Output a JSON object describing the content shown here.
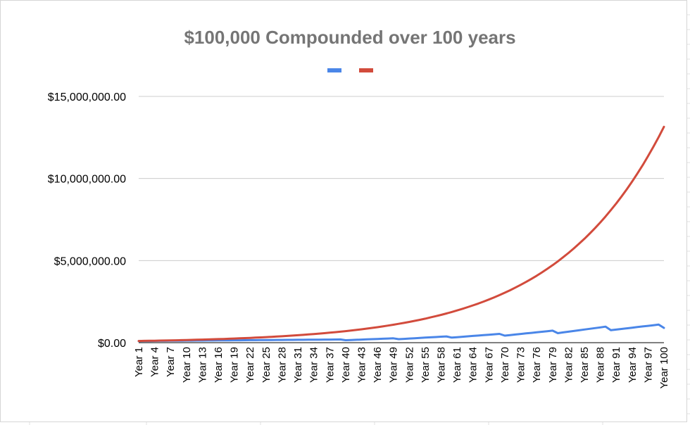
{
  "colors": {
    "series_0": "#4a86e8",
    "series_1": "#d24b3c",
    "grid": "#cccccc",
    "axis": "#000000",
    "title": "#757575"
  },
  "chart_data": {
    "type": "line",
    "title": "$100,000 Compounded over 100 years",
    "xlabel": "",
    "ylabel": "",
    "ylim": [
      0,
      15000000
    ],
    "y_ticks": [
      0,
      5000000,
      10000000,
      15000000
    ],
    "y_tick_labels": [
      "$0.00",
      "$5,000,000.00",
      "$10,000,000.00",
      "$15,000,000.00"
    ],
    "x_categories_count": 100,
    "x_tick_labels": [
      "Year 1",
      "Year 4",
      "Year 7",
      "Year 10",
      "Year 13",
      "Year 16",
      "Year 19",
      "Year 22",
      "Year 25",
      "Year 28",
      "Year 31",
      "Year 34",
      "Year 37",
      "Year 40",
      "Year 43",
      "Year 46",
      "Year 49",
      "Year 52",
      "Year 55",
      "Year 58",
      "Year 61",
      "Year 64",
      "Year 67",
      "Year 70",
      "Year 73",
      "Year 76",
      "Year 79",
      "Year 82",
      "Year 85",
      "Year 88",
      "Year 91",
      "Year 94",
      "Year 97",
      "Year 100"
    ],
    "grid": true,
    "legend_position": "top",
    "series": [
      {
        "color": "#4a86e8",
        "values": [
          100000,
          102500,
          105000,
          107500,
          110000,
          112500,
          115000,
          117500,
          120000,
          122500,
          125000,
          127500,
          130000,
          132500,
          135000,
          137500,
          140000,
          142500,
          145000,
          147500,
          150000,
          152500,
          155000,
          157500,
          160000,
          162500,
          165000,
          167500,
          170000,
          172500,
          175000,
          177500,
          180000,
          182500,
          185000,
          187500,
          190000,
          192500,
          195000,
          150000,
          163000,
          176000,
          189000,
          202000,
          215000,
          228000,
          241000,
          254000,
          267000,
          215000,
          233500,
          252000,
          270500,
          289000,
          307500,
          326000,
          344500,
          363000,
          381500,
          310000,
          335000,
          360000,
          385000,
          410000,
          435000,
          460000,
          485000,
          510000,
          535000,
          430000,
          463500,
          497000,
          530500,
          564000,
          597500,
          631000,
          664500,
          698000,
          731500,
          580000,
          624000,
          668000,
          712000,
          756000,
          800000,
          844000,
          888000,
          932000,
          976000,
          760000,
          798000,
          836000,
          874000,
          912000,
          950000,
          988000,
          1026000,
          1064000,
          1100000,
          900000
        ]
      },
      {
        "color": "#d24b3c",
        "values": [
          105000,
          110250,
          115763,
          121551,
          127628,
          134010,
          140710,
          147746,
          155133,
          162889,
          171034,
          179586,
          188565,
          197993,
          207893,
          218287,
          229202,
          240662,
          252695,
          265330,
          278596,
          292526,
          307152,
          322510,
          338635,
          355567,
          373346,
          392013,
          411614,
          432194,
          453804,
          476494,
          500319,
          525335,
          551602,
          579182,
          608141,
          638548,
          670475,
          703999,
          739199,
          776159,
          814967,
          855715,
          898501,
          943426,
          990597,
          1040127,
          1092133,
          1146740,
          1204077,
          1264281,
          1327495,
          1393870,
          1463563,
          1536741,
          1613578,
          1694257,
          1778970,
          1867919,
          1961315,
          2059380,
          2162349,
          2270467,
          2383990,
          2503190,
          2628349,
          2759767,
          2897755,
          3042643,
          3194775,
          3354514,
          3522240,
          3698351,
          3883269,
          4077433,
          4281304,
          4495369,
          4720138,
          4956145,
          5203952,
          5464150,
          5737357,
          6024225,
          6325436,
          6641708,
          6973794,
          7322484,
          7688608,
          8073038,
          8476690,
          8900525,
          9345551,
          9812828,
          10303470,
          10818644,
          11359576,
          11927555,
          12523932,
          13150129
        ]
      }
    ]
  }
}
